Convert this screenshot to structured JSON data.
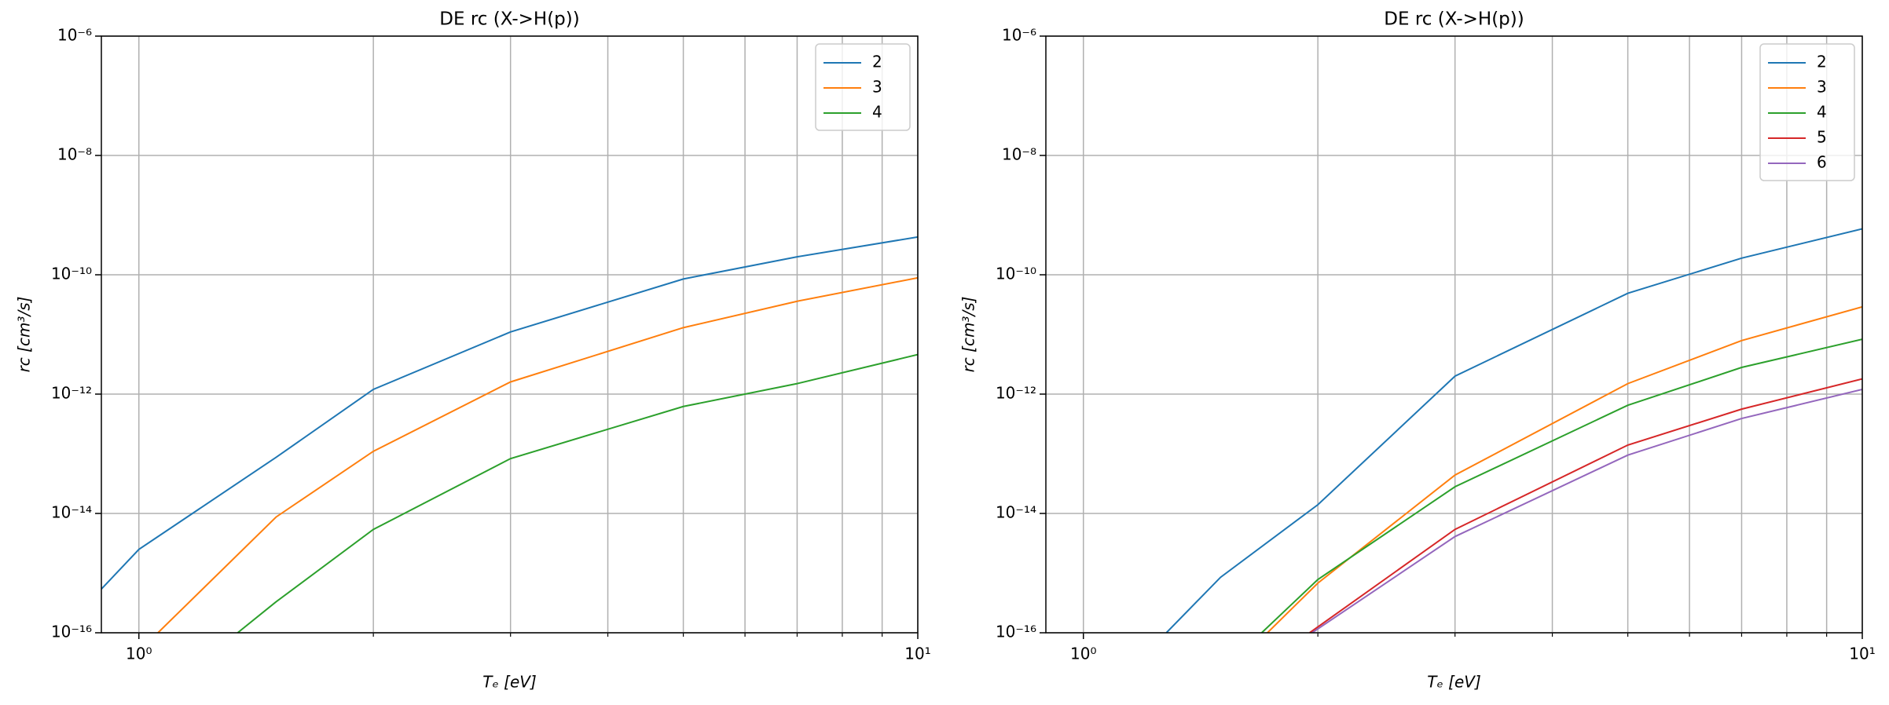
{
  "chart_data": [
    {
      "type": "line",
      "title": "DE rc (X->H(p))",
      "xlabel": "Tₑ   [eV]",
      "ylabel": "rc   [cm³/s]",
      "xscale": "log",
      "yscale": "log",
      "grid": true,
      "legend": "upper right",
      "xlim": [
        0.895,
        10
      ],
      "ylim": [
        1e-16,
        1e-06
      ],
      "xticks": [
        {
          "value": 1,
          "label": "10⁰"
        },
        {
          "value": 10,
          "label": "10¹"
        }
      ],
      "xminorticks": [
        2,
        3,
        4,
        5,
        6,
        7,
        8,
        9
      ],
      "yticks": [
        {
          "value": 1e-16,
          "label": "10⁻¹⁶"
        },
        {
          "value": 1e-14,
          "label": "10⁻¹⁴"
        },
        {
          "value": 1e-12,
          "label": "10⁻¹²"
        },
        {
          "value": 1e-10,
          "label": "10⁻¹⁰"
        },
        {
          "value": 1e-08,
          "label": "10⁻⁸"
        },
        {
          "value": 1e-06,
          "label": "10⁻⁶"
        }
      ],
      "series": [
        {
          "name": "2",
          "color": "#1f77b4",
          "x": [
            0.895,
            1,
            1.5,
            2,
            3,
            5,
            7,
            10
          ],
          "values": [
            5.4e-16,
            2.5e-15,
            8.7e-14,
            1.2e-12,
            1.1e-11,
            8.5e-11,
            2e-10,
            4.3e-10
          ]
        },
        {
          "name": "3",
          "color": "#ff7f0e",
          "x": [
            1.058,
            1.5,
            2,
            3,
            5,
            7,
            10
          ],
          "values": [
            1e-16,
            8.7e-15,
            1.1e-13,
            1.6e-12,
            1.3e-11,
            3.6e-11,
            8.9e-11
          ]
        },
        {
          "name": "4",
          "color": "#2ca02c",
          "x": [
            1.339,
            1.5,
            2,
            3,
            5,
            7,
            10
          ],
          "values": [
            1e-16,
            3.3e-16,
            5.4e-15,
            8.3e-14,
            6.2e-13,
            1.5e-12,
            4.6e-12
          ]
        }
      ]
    },
    {
      "type": "line",
      "title": "DE rc (X->H(p))",
      "xlabel": "Tₑ   [eV]",
      "ylabel": "rc   [cm³/s]",
      "xscale": "log",
      "yscale": "log",
      "grid": true,
      "legend": "upper right",
      "xlim": [
        0.895,
        10
      ],
      "ylim": [
        1e-16,
        1e-06
      ],
      "xticks": [
        {
          "value": 1,
          "label": "10⁰"
        },
        {
          "value": 10,
          "label": "10¹"
        }
      ],
      "xminorticks": [
        2,
        3,
        4,
        5,
        6,
        7,
        8,
        9
      ],
      "yticks": [
        {
          "value": 1e-16,
          "label": "10⁻¹⁶"
        },
        {
          "value": 1e-14,
          "label": "10⁻¹⁴"
        },
        {
          "value": 1e-12,
          "label": "10⁻¹²"
        },
        {
          "value": 1e-10,
          "label": "10⁻¹⁰"
        },
        {
          "value": 1e-08,
          "label": "10⁻⁸"
        },
        {
          "value": 1e-06,
          "label": "10⁻⁶"
        }
      ],
      "series": [
        {
          "name": "2",
          "color": "#1f77b4",
          "x": [
            1.278,
            1.5,
            2,
            3,
            5,
            7,
            10
          ],
          "values": [
            1e-16,
            8.5e-16,
            1.4e-14,
            2e-12,
            4.9e-11,
            1.9e-10,
            5.9e-10
          ]
        },
        {
          "name": "3",
          "color": "#ff7f0e",
          "x": [
            1.723,
            2,
            3,
            5,
            7,
            10
          ],
          "values": [
            1e-16,
            6.8e-16,
            4.4e-14,
            1.5e-12,
            7.9e-12,
            2.9e-11
          ]
        },
        {
          "name": "4",
          "color": "#2ca02c",
          "x": [
            1.694,
            2,
            3,
            5,
            7,
            10
          ],
          "values": [
            1e-16,
            7.8e-16,
            2.8e-14,
            6.5e-13,
            2.8e-12,
            8.3e-12
          ]
        },
        {
          "name": "5",
          "color": "#d62728",
          "x": [
            1.952,
            3,
            5,
            7,
            10
          ],
          "values": [
            1e-16,
            5.4e-15,
            1.4e-13,
            5.6e-13,
            1.8e-12
          ]
        },
        {
          "name": "6",
          "color": "#9467bd",
          "x": [
            1.966,
            3,
            5,
            7,
            10
          ],
          "values": [
            1e-16,
            4.1e-15,
            9.5e-14,
            3.9e-13,
            1.2e-12
          ]
        }
      ]
    }
  ]
}
